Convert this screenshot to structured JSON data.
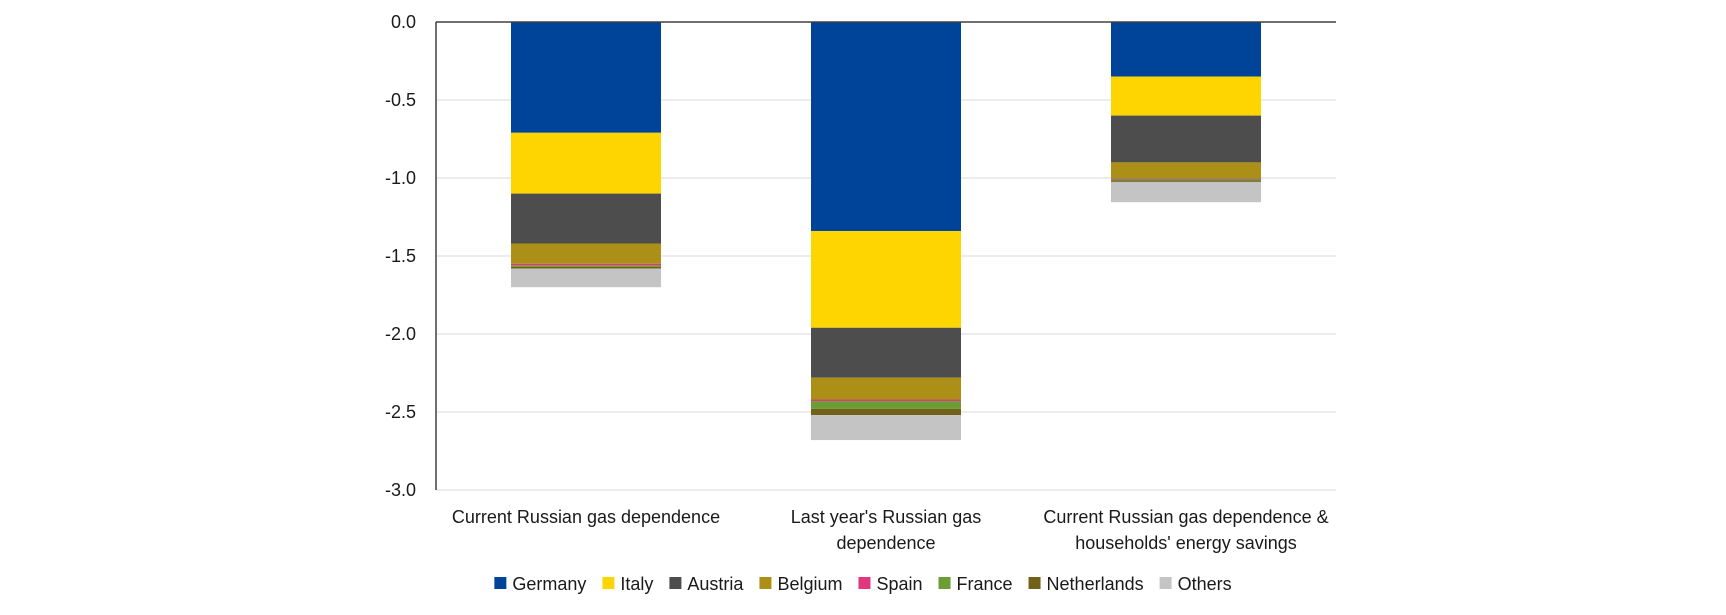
{
  "chart_data": {
    "type": "bar",
    "stacked": true,
    "title": "",
    "xlabel": "",
    "ylabel": "",
    "ylim": [
      -3.0,
      0.0
    ],
    "yticks": [
      "0.0",
      "-0.5",
      "-1.0",
      "-1.5",
      "-2.0",
      "-2.5",
      "-3.0"
    ],
    "grid": true,
    "legend_position": "bottom",
    "categories": [
      [
        "Current Russian gas dependence"
      ],
      [
        "Last year's Russian gas",
        "dependence"
      ],
      [
        "Current Russian gas dependence &",
        "households' energy savings"
      ]
    ],
    "series": [
      {
        "name": "Germany",
        "color": "#00449a",
        "values": [
          -0.71,
          -1.34,
          -0.35
        ]
      },
      {
        "name": "Italy",
        "color": "#ffd500",
        "values": [
          -0.39,
          -0.62,
          -0.25
        ]
      },
      {
        "name": "Austria",
        "color": "#4d4d4d",
        "values": [
          -0.32,
          -0.32,
          -0.3
        ]
      },
      {
        "name": "Belgium",
        "color": "#ab8f17",
        "values": [
          -0.13,
          -0.14,
          -0.1
        ]
      },
      {
        "name": "Spain",
        "color": "#e0377d",
        "values": [
          -0.01,
          -0.01,
          -0.005
        ]
      },
      {
        "name": "France",
        "color": "#6c9c35",
        "values": [
          -0.01,
          -0.05,
          -0.01
        ]
      },
      {
        "name": "Netherlands",
        "color": "#726119",
        "values": [
          -0.01,
          -0.04,
          -0.01
        ]
      },
      {
        "name": "Others",
        "color": "#c4c4c4",
        "values": [
          -0.12,
          -0.16,
          -0.13
        ]
      }
    ]
  }
}
